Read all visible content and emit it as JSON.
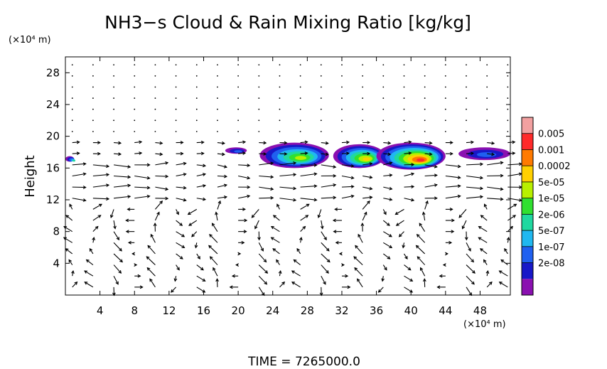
{
  "chart_data": {
    "type": "heatmap",
    "title": "NH3−s Cloud & Rain Mixing Ratio [kg/kg]",
    "xlabel": "",
    "ylabel": "Height",
    "x_unit": "(×10⁴ m)",
    "y_unit": "(×10⁴ m)",
    "xlim": [
      0,
      51.5
    ],
    "ylim": [
      0,
      30
    ],
    "x_ticks": [
      4,
      8,
      12,
      16,
      20,
      24,
      28,
      32,
      36,
      40,
      44,
      48
    ],
    "y_ticks": [
      4,
      8,
      12,
      16,
      20,
      24,
      28
    ],
    "time_label": "TIME  =  7265000.0",
    "colorbar": {
      "labels": [
        "0.005",
        "0.001",
        "0.0002",
        "5e-05",
        "1e-05",
        "2e-06",
        "5e-07",
        "1e-07",
        "2e-08"
      ],
      "colors": [
        "#f2a0a0",
        "#ff2a2a",
        "#ff7a00",
        "#ffd000",
        "#b8f000",
        "#30e030",
        "#20d8a0",
        "#20b8f0",
        "#2060f0",
        "#1818c8",
        "#8a10b0"
      ]
    },
    "cloud_regions": [
      {
        "x": [
          18.5,
          21
        ],
        "y": [
          17.8,
          18.6
        ],
        "max_level": 8
      },
      {
        "x": [
          22.5,
          30.5
        ],
        "y": [
          16.0,
          19.2
        ],
        "max_level": 4
      },
      {
        "x": [
          31,
          37
        ],
        "y": [
          16.0,
          19.0
        ],
        "max_level": 3
      },
      {
        "x": [
          36,
          44
        ],
        "y": [
          15.8,
          19.2
        ],
        "max_level": 1
      },
      {
        "x": [
          45.5,
          51.5
        ],
        "y": [
          17.0,
          18.6
        ],
        "max_level": 8
      },
      {
        "x": [
          0,
          1
        ],
        "y": [
          16.8,
          17.5
        ],
        "max_level": 6
      }
    ],
    "wind_vectors": "arrow field (u,w) on regular grid: weak above 20, strong eastward near 12-16, circulation cells below 10"
  }
}
